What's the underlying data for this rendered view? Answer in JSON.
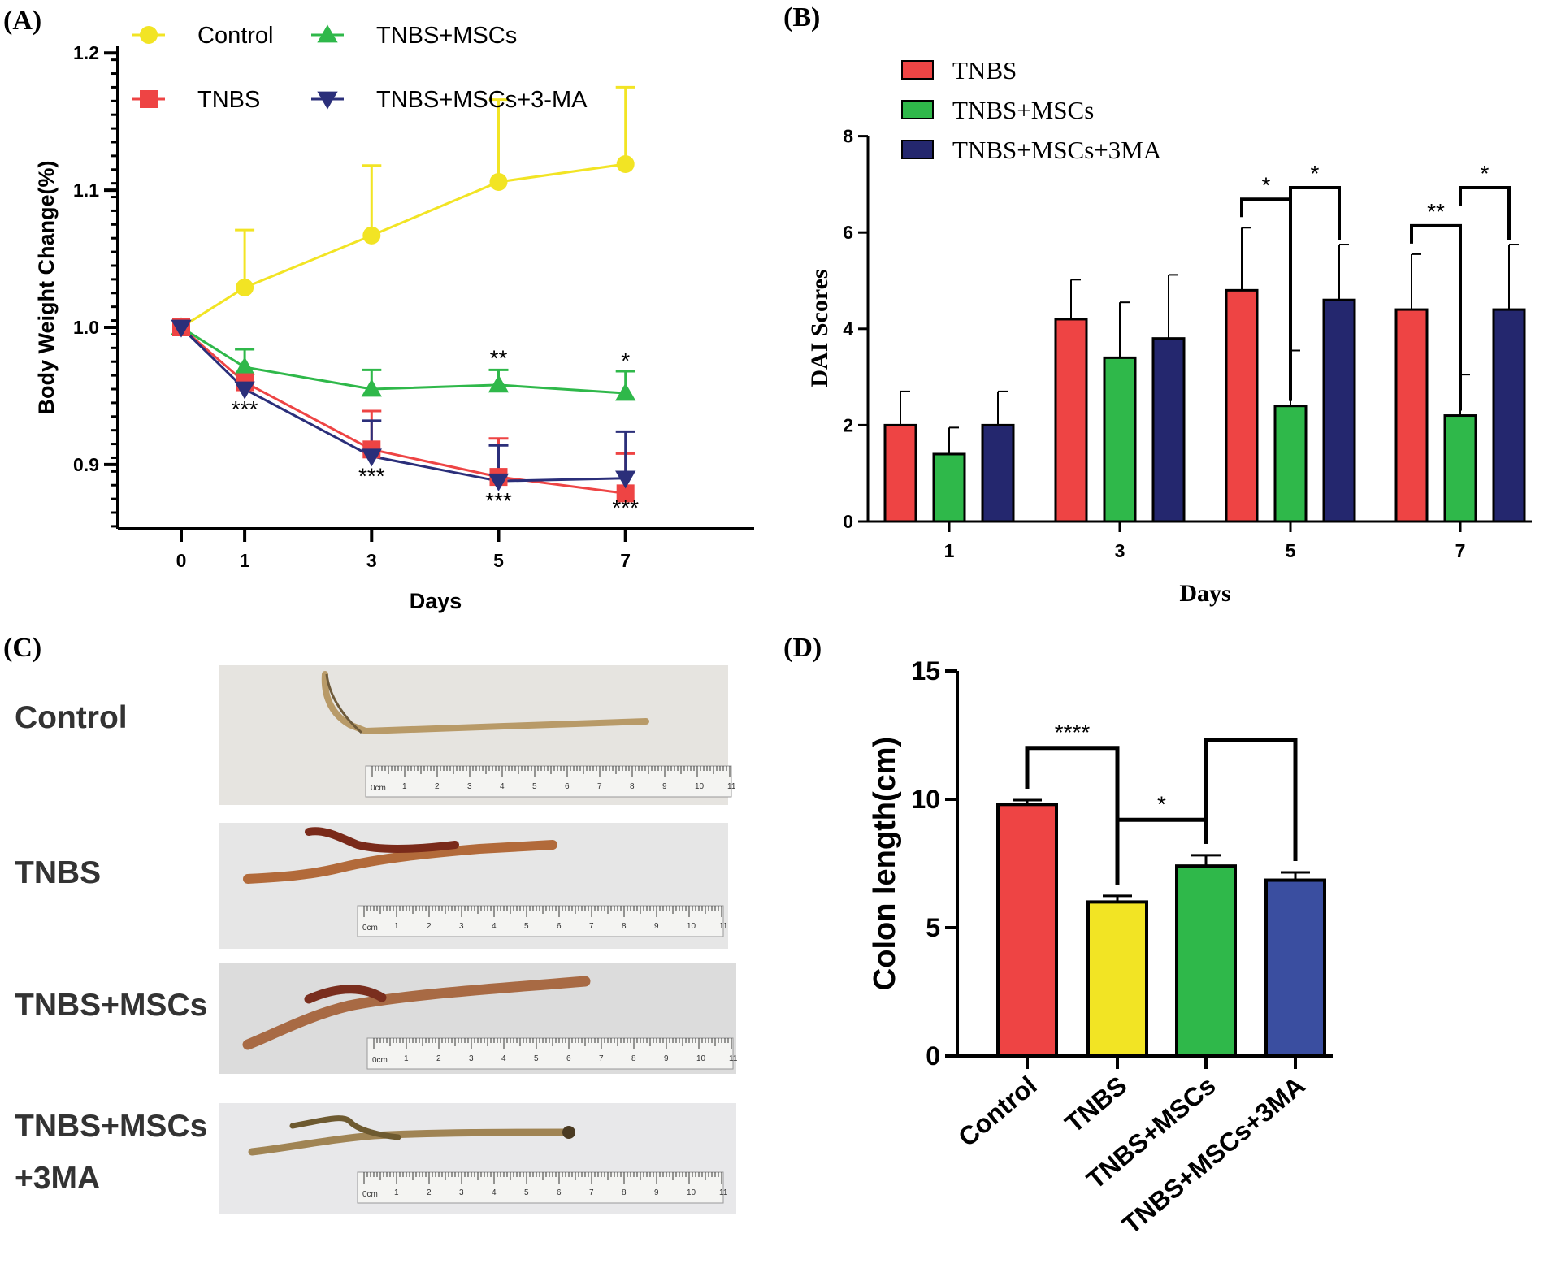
{
  "panels": {
    "a": {
      "letter": "(A)"
    },
    "b": {
      "letter": "(B)"
    },
    "c": {
      "letter": "(C)"
    },
    "d": {
      "letter": "(D)"
    }
  },
  "colors": {
    "control": "#f2e424",
    "tnbs": "#ee4444",
    "mscs": "#2fb84a",
    "ma_line": "#2b2f7a",
    "ma_bar": "#24276e",
    "ma_bar_d": "#3a4ea0"
  },
  "chart_data": [
    {
      "panel": "A",
      "type": "line",
      "title": "",
      "xlabel": "Days",
      "ylabel": "Body Weight Change(%)",
      "x": [
        0,
        1,
        3,
        5,
        7
      ],
      "xlim": [
        0,
        7
      ],
      "ylim": [
        0.85,
        1.2
      ],
      "yticks": [
        0.9,
        1.0,
        1.1,
        1.2
      ],
      "yticklabels": [
        "0.9",
        "1.0",
        "1.1",
        "1.2"
      ],
      "grid": false,
      "legend_position": "top",
      "series": [
        {
          "name": "Control",
          "marker": "circle",
          "color": "#f2e424",
          "values": [
            1.0,
            1.029,
            1.067,
            1.106,
            1.119
          ],
          "errors": [
            0,
            0.042,
            0.051,
            0.06,
            0.056
          ]
        },
        {
          "name": "TNBS+MSCs",
          "marker": "triangle-up",
          "color": "#2fb84a",
          "values": [
            1.0,
            0.971,
            0.955,
            0.958,
            0.952
          ],
          "errors": [
            0,
            0.013,
            0.014,
            0.011,
            0.016
          ]
        },
        {
          "name": "TNBS",
          "marker": "square",
          "color": "#ee4444",
          "values": [
            1.0,
            0.96,
            0.911,
            0.891,
            0.879
          ],
          "errors": [
            0,
            0,
            0.028,
            0.028,
            0.029
          ]
        },
        {
          "name": "TNBS+MSCs+3-MA",
          "marker": "triangle-down",
          "color": "#2b2f7a",
          "values": [
            1.0,
            0.955,
            0.906,
            0.888,
            0.89
          ],
          "errors": [
            0,
            0,
            0.026,
            0.026,
            0.034
          ]
        }
      ],
      "annotations": [
        {
          "x": 1,
          "y": 0.935,
          "text": "***"
        },
        {
          "x": 3,
          "y": 0.886,
          "text": "***"
        },
        {
          "x": 5,
          "y": 0.868,
          "text": "***"
        },
        {
          "x": 5,
          "y": 0.972,
          "text": "**"
        },
        {
          "x": 7,
          "y": 0.863,
          "text": "***"
        },
        {
          "x": 7,
          "y": 0.97,
          "text": "*"
        }
      ]
    },
    {
      "panel": "B",
      "type": "bar",
      "title": "",
      "xlabel": "Days",
      "ylabel": "DAI Scores",
      "categories": [
        "1",
        "3",
        "5",
        "7"
      ],
      "ylim": [
        0,
        8
      ],
      "yticks": [
        0,
        2,
        4,
        6,
        8
      ],
      "yticklabels": [
        "0",
        "2",
        "4",
        "6",
        "8"
      ],
      "grid": false,
      "legend_position": "top-left",
      "series": [
        {
          "name": "TNBS",
          "color": "#ee4444",
          "values": [
            2.0,
            4.2,
            4.8,
            4.4
          ],
          "errors": [
            0.7,
            0.82,
            1.3,
            1.15
          ]
        },
        {
          "name": "TNBS+MSCs",
          "color": "#2fb84a",
          "values": [
            1.4,
            3.4,
            2.4,
            2.2
          ],
          "errors": [
            0.55,
            1.15,
            1.15,
            0.85
          ]
        },
        {
          "name": "TNBS+MSCs+3MA",
          "color": "#24276e",
          "values": [
            2.0,
            3.8,
            4.6,
            4.4
          ],
          "errors": [
            0.7,
            1.32,
            1.15,
            1.35
          ]
        }
      ],
      "significance": [
        {
          "category": "5",
          "from": 0,
          "to": 1,
          "text": "*"
        },
        {
          "category": "5",
          "from": 1,
          "to": 2,
          "text": "*"
        },
        {
          "category": "7",
          "from": 0,
          "to": 1,
          "text": "**"
        },
        {
          "category": "7",
          "from": 1,
          "to": 2,
          "text": "*"
        }
      ]
    },
    {
      "panel": "D",
      "type": "bar",
      "title": "",
      "xlabel": "",
      "ylabel": "Colon length(cm)",
      "categories": [
        "Control",
        "TNBS",
        "TNBS+MSCs",
        "TNBS+MSCs+3MA"
      ],
      "values": [
        9.8,
        6.0,
        7.4,
        6.85
      ],
      "errors": [
        0.17,
        0.24,
        0.42,
        0.3
      ],
      "colors": [
        "#ee4444",
        "#f2e424",
        "#2fb84a",
        "#3a4ea0"
      ],
      "ylim": [
        0,
        15
      ],
      "yticks": [
        0,
        5,
        10,
        15
      ],
      "yticklabels": [
        "0",
        "5",
        "10",
        "15"
      ],
      "grid": false,
      "significance": [
        {
          "from": 0,
          "to": 1,
          "text": "****"
        },
        {
          "from": 1,
          "to": 2,
          "text": "*"
        },
        {
          "from": 2,
          "to": 3,
          "text": ""
        }
      ]
    }
  ],
  "photos": {
    "rows": [
      {
        "label": "Control"
      },
      {
        "label": "TNBS"
      },
      {
        "label": "TNBS+MSCs"
      },
      {
        "label_line1": "TNBS+MSCs",
        "label_line2": "+3MA"
      }
    ],
    "ruler_unit": "0cm",
    "ruler_numbers": [
      "1",
      "2",
      "3",
      "4",
      "5",
      "6",
      "7",
      "8",
      "9",
      "10",
      "11"
    ]
  }
}
